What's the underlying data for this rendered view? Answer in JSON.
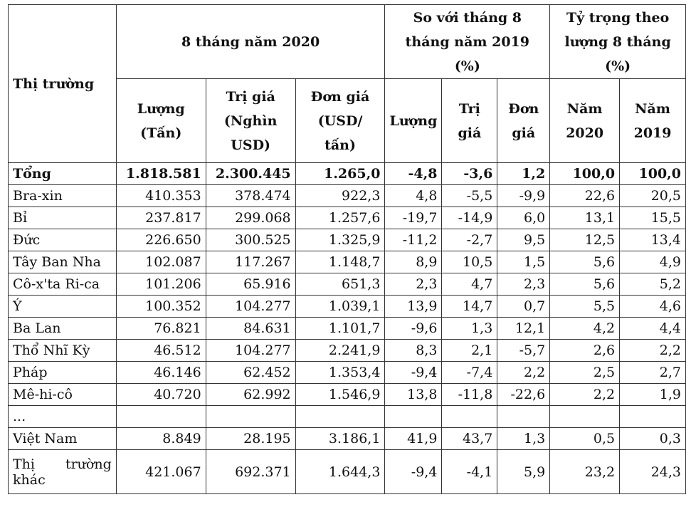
{
  "header": {
    "market": "Thị trường",
    "group1": "8 tháng năm 2020",
    "group2_l1": "So với tháng 8",
    "group2_l2": "tháng năm 2019",
    "group2_l3": "(%)",
    "group3_l1": "Tỷ trọng theo",
    "group3_l2": "lượng 8 tháng",
    "group3_l3": "(%)",
    "vol_l1": "Lượng",
    "vol_l2": "(Tấn)",
    "val_l1": "Trị giá",
    "val_l2": "(Nghìn",
    "val_l3": "USD)",
    "price_l1": "Đơn giá",
    "price_l2": "(USD/",
    "price_l3": "tấn)",
    "cmp_vol": "Lượng",
    "cmp_val_l1": "Trị",
    "cmp_val_l2": "giá",
    "cmp_price_l1": "Đơn",
    "cmp_price_l2": "giá",
    "y2020_l1": "Năm",
    "y2020_l2": "2020",
    "y2019_l1": "Năm",
    "y2019_l2": "2019"
  },
  "total": [
    "Tổng",
    "1.818.581",
    "2.300.445",
    "1.265,0",
    "-4,8",
    "-3,6",
    "1,2",
    "100,0",
    "100,0"
  ],
  "rows": [
    [
      "Bra-xin",
      "410.353",
      "378.474",
      "922,3",
      "4,8",
      "-5,5",
      "-9,9",
      "22,6",
      "20,5"
    ],
    [
      "Bỉ",
      "237.817",
      "299.068",
      "1.257,6",
      "-19,7",
      "-14,9",
      "6,0",
      "13,1",
      "15,5"
    ],
    [
      "Đức",
      "226.650",
      "300.525",
      "1.325,9",
      "-11,2",
      "-2,7",
      "9,5",
      "12,5",
      "13,4"
    ],
    [
      "Tây Ban Nha",
      "102.087",
      "117.267",
      "1.148,7",
      "8,9",
      "10,5",
      "1,5",
      "5,6",
      "4,9"
    ],
    [
      "Cô-x'ta Ri-ca",
      "101.206",
      "65.916",
      "651,3",
      "2,3",
      "4,7",
      "2,3",
      "5,6",
      "5,2"
    ],
    [
      "Ý",
      "100.352",
      "104.277",
      "1.039,1",
      "13,9",
      "14,7",
      "0,7",
      "5,5",
      "4,6"
    ],
    [
      "Ba Lan",
      "76.821",
      "84.631",
      "1.101,7",
      "-9,6",
      "1,3",
      "12,1",
      "4,2",
      "4,4"
    ],
    [
      "Thổ Nhĩ Kỳ",
      "46.512",
      "104.277",
      "2.241,9",
      "8,3",
      "2,1",
      "-5,7",
      "2,6",
      "2,2"
    ],
    [
      "Pháp",
      "46.146",
      "62.452",
      "1.353,4",
      "-9,4",
      "-7,4",
      "2,2",
      "2,5",
      "2,7"
    ],
    [
      "Mê-hi-cô",
      "40.720",
      "62.992",
      "1.546,9",
      "13,8",
      "-11,8",
      "-22,6",
      "2,2",
      "1,9"
    ]
  ],
  "ellipsis": "...",
  "vietnam": [
    "Việt Nam",
    "8.849",
    "28.195",
    "3.186,1",
    "41,9",
    "43,7",
    "1,3",
    "0,5",
    "0,3"
  ],
  "other": {
    "label_w1": "Thị",
    "label_w2": "trường",
    "label_w3": "khác",
    "values": [
      "421.067",
      "692.371",
      "1.644,3",
      "-9,4",
      "-4,1",
      "5,9",
      "23,2",
      "24,3"
    ]
  }
}
